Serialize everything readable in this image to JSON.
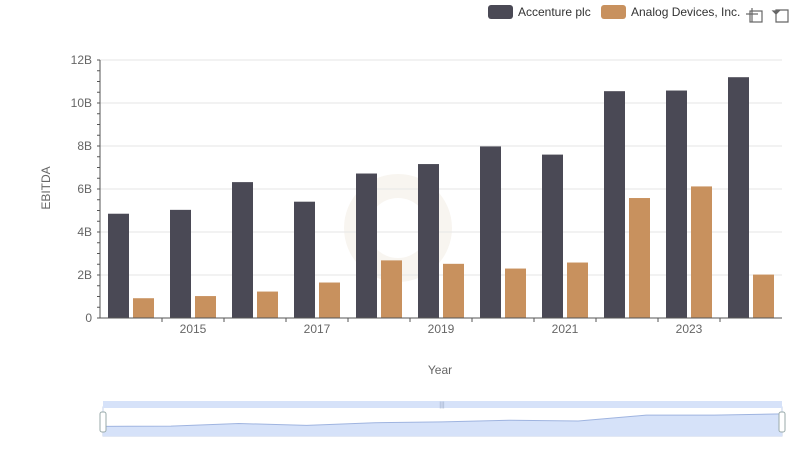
{
  "colors": {
    "series_0": "#4a4955",
    "series_1": "#c8915e",
    "grid": "#e6e6e6",
    "axis": "#555555",
    "zoom_fill": "#d6e2f9",
    "zoom_line": "#9fb4e0",
    "zoom_border": "#c4d0e8",
    "watermark": "#f3ede4"
  },
  "icons": {
    "zoom_tool": "zoom-icon",
    "restore_tool": "restore-icon"
  },
  "chart_data": {
    "type": "bar",
    "title": "",
    "xlabel": "Year",
    "ylabel": "EBITDA",
    "categories": [
      "2014",
      "2015",
      "2016",
      "2017",
      "2018",
      "2019",
      "2020",
      "2021",
      "2022",
      "2023",
      "2024"
    ],
    "x_tick_labels": [
      "2015",
      "2017",
      "2019",
      "2021",
      "2023"
    ],
    "y_tick_labels": [
      "0",
      "2B",
      "4B",
      "6B",
      "8B",
      "10B",
      "12B"
    ],
    "ylim": [
      0,
      12000000000
    ],
    "grid": true,
    "legend_position": "top-right",
    "series": [
      {
        "name": "Accenture plc",
        "values": [
          4850000000,
          5030000000,
          6320000000,
          5410000000,
          6720000000,
          7160000000,
          7980000000,
          7600000000,
          10550000000,
          10580000000,
          11200000000
        ]
      },
      {
        "name": "Analog Devices, Inc.",
        "values": [
          920000000,
          1020000000,
          1230000000,
          1650000000,
          2680000000,
          2520000000,
          2300000000,
          2580000000,
          5580000000,
          6120000000,
          2020000000
        ]
      }
    ]
  }
}
